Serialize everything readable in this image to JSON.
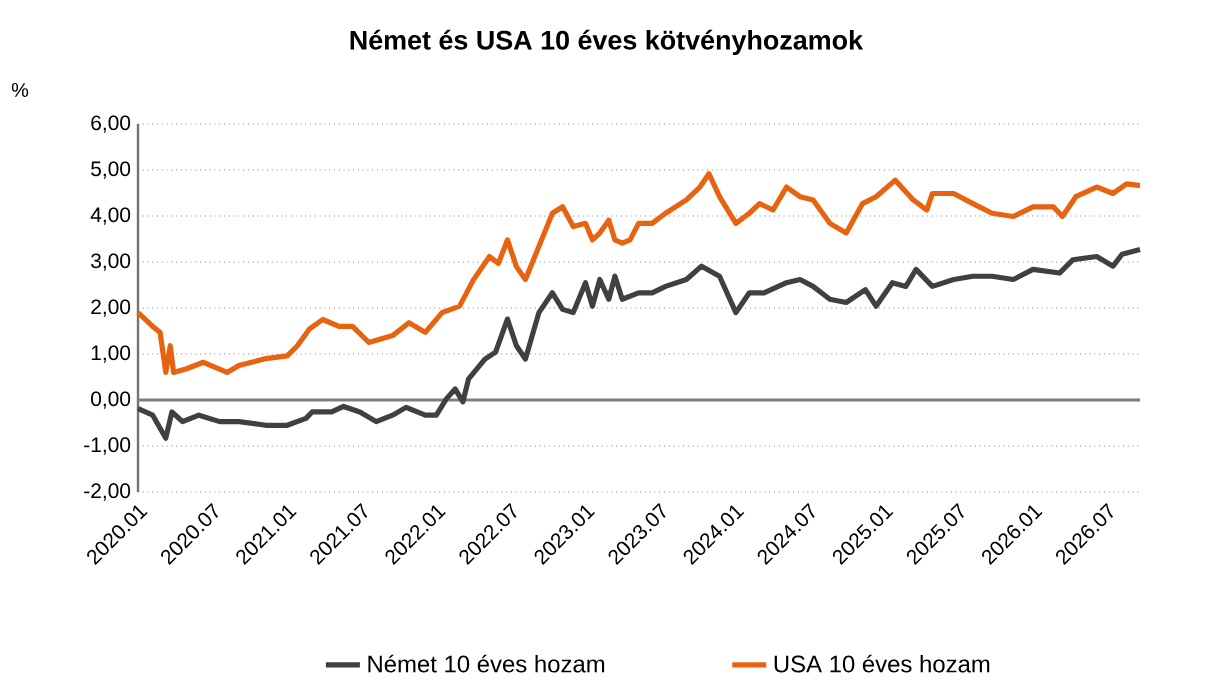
{
  "chart_data": {
    "type": "line",
    "title": "Német és USA 10 éves kötvényhozamok",
    "ylabel": "%",
    "xlim": [
      "2020-01-01",
      "2026-09-20"
    ],
    "ylim": [
      -2,
      6
    ],
    "xticks": [
      {
        "value": "2020-01",
        "label": "2020.01"
      },
      {
        "value": "2020-07",
        "label": "2020.07"
      },
      {
        "value": "2021-01",
        "label": "2021.01"
      },
      {
        "value": "2021-07",
        "label": "2021.07"
      },
      {
        "value": "2022-01",
        "label": "2022.01"
      },
      {
        "value": "2022-07",
        "label": "2022.07"
      },
      {
        "value": "2023-01",
        "label": "2023.01"
      },
      {
        "value": "2023-07",
        "label": "2023.07"
      },
      {
        "value": "2024-01",
        "label": "2024.01"
      },
      {
        "value": "2024-07",
        "label": "2024.07"
      },
      {
        "value": "2025-01",
        "label": "2025.01"
      },
      {
        "value": "2025-07",
        "label": "2025.07"
      },
      {
        "value": "2026-01",
        "label": "2026.01"
      },
      {
        "value": "2026-07",
        "label": "2026.07"
      }
    ],
    "yticks": [
      {
        "value": -2,
        "label": "-2,00"
      },
      {
        "value": -1,
        "label": "-1,00"
      },
      {
        "value": 0,
        "label": "0,00"
      },
      {
        "value": 1,
        "label": "1,00"
      },
      {
        "value": 2,
        "label": "2,00"
      },
      {
        "value": 3,
        "label": "3,00"
      },
      {
        "value": 4,
        "label": "4,00"
      },
      {
        "value": 5,
        "label": "5,00"
      },
      {
        "value": 6,
        "label": "6,00"
      }
    ],
    "grid": "y",
    "legend": "bottom",
    "ref_lines": [
      {
        "axis": "y",
        "value": 0,
        "color": "#7f7f7f"
      }
    ],
    "series": [
      {
        "name": "Német 10 éves hozam",
        "color": "#404040",
        "x": [
          "2020-01-01",
          "2020-02-06",
          "2020-03-10",
          "2020-03-25",
          "2020-04-20",
          "2020-05-30",
          "2020-07-20",
          "2020-09-05",
          "2020-11-10",
          "2021-01-01",
          "2021-02-16",
          "2021-03-03",
          "2021-04-20",
          "2021-05-19",
          "2021-06-28",
          "2021-08-07",
          "2021-09-16",
          "2021-10-19",
          "2021-12-05",
          "2022-01-01",
          "2022-01-26",
          "2022-02-16",
          "2022-03-07",
          "2022-03-21",
          "2022-04-30",
          "2022-05-26",
          "2022-06-24",
          "2022-07-16",
          "2022-08-07",
          "2022-09-09",
          "2022-10-12",
          "2022-11-06",
          "2022-12-02",
          "2023-01-01",
          "2023-01-18",
          "2023-02-05",
          "2023-02-27",
          "2023-03-14",
          "2023-04-01",
          "2023-05-11",
          "2023-06-13",
          "2023-07-16",
          "2023-09-05",
          "2023-10-12",
          "2023-11-25",
          "2024-01-04",
          "2024-02-06",
          "2024-03-14",
          "2024-05-08",
          "2024-06-10",
          "2024-07-12",
          "2024-08-22",
          "2024-10-01",
          "2024-11-17",
          "2024-12-13",
          "2025-01-22",
          "2025-02-24",
          "2025-03-21",
          "2025-04-30",
          "2025-06-21",
          "2025-08-07",
          "2025-09-23",
          "2025-11-14",
          "2026-01-01",
          "2026-03-07",
          "2026-04-09",
          "2026-06-06",
          "2026-07-16",
          "2026-08-07",
          "2026-09-20"
        ],
        "values": [
          -0.19,
          -0.33,
          -0.83,
          -0.26,
          -0.47,
          -0.33,
          -0.47,
          -0.47,
          -0.55,
          -0.55,
          -0.4,
          -0.26,
          -0.26,
          -0.14,
          -0.26,
          -0.47,
          -0.33,
          -0.16,
          -0.33,
          -0.33,
          0.03,
          0.24,
          -0.04,
          0.46,
          0.89,
          1.04,
          1.76,
          1.18,
          0.89,
          1.9,
          2.33,
          1.97,
          1.9,
          2.55,
          2.04,
          2.62,
          2.19,
          2.69,
          2.19,
          2.33,
          2.33,
          2.47,
          2.62,
          2.91,
          2.69,
          1.9,
          2.33,
          2.33,
          2.55,
          2.62,
          2.47,
          2.19,
          2.12,
          2.4,
          2.04,
          2.55,
          2.47,
          2.84,
          2.47,
          2.62,
          2.69,
          2.69,
          2.62,
          2.84,
          2.76,
          3.05,
          3.12,
          2.91,
          3.17,
          3.27
        ]
      },
      {
        "name": "USA 10 éves hozam",
        "color": "#e8630f",
        "x": [
          "2020-01-01",
          "2020-02-06",
          "2020-02-24",
          "2020-03-10",
          "2020-03-21",
          "2020-03-29",
          "2020-04-30",
          "2020-06-10",
          "2020-08-07",
          "2020-09-05",
          "2020-11-10",
          "2021-01-01",
          "2021-01-26",
          "2021-02-24",
          "2021-03-29",
          "2021-05-08",
          "2021-06-10",
          "2021-07-20",
          "2021-09-16",
          "2021-10-26",
          "2021-12-05",
          "2022-01-15",
          "2022-02-27",
          "2022-04-01",
          "2022-05-11",
          "2022-06-02",
          "2022-06-24",
          "2022-07-16",
          "2022-08-07",
          "2022-09-09",
          "2022-10-12",
          "2022-11-06",
          "2022-12-02",
          "2023-01-01",
          "2023-01-18",
          "2023-02-05",
          "2023-02-27",
          "2023-03-14",
          "2023-04-01",
          "2023-04-20",
          "2023-05-11",
          "2023-06-13",
          "2023-07-16",
          "2023-09-05",
          "2023-10-08",
          "2023-10-30",
          "2023-11-25",
          "2024-01-04",
          "2024-02-06",
          "2024-03-03",
          "2024-04-05",
          "2024-05-08",
          "2024-06-10",
          "2024-07-12",
          "2024-08-22",
          "2024-10-01",
          "2024-11-10",
          "2024-12-13",
          "2025-01-29",
          "2025-03-14",
          "2025-04-16",
          "2025-04-30",
          "2025-06-21",
          "2025-08-07",
          "2025-09-23",
          "2025-11-14",
          "2026-01-01",
          "2026-02-20",
          "2026-03-14",
          "2026-04-16",
          "2026-06-06",
          "2026-07-16",
          "2026-08-18",
          "2026-09-20"
        ],
        "values": [
          1.9,
          1.6,
          1.47,
          0.6,
          1.18,
          0.6,
          0.68,
          0.82,
          0.6,
          0.75,
          0.9,
          0.96,
          1.18,
          1.54,
          1.75,
          1.6,
          1.6,
          1.25,
          1.4,
          1.68,
          1.47,
          1.9,
          2.04,
          2.6,
          3.12,
          2.97,
          3.48,
          2.9,
          2.62,
          3.34,
          4.06,
          4.2,
          3.77,
          3.84,
          3.48,
          3.63,
          3.91,
          3.48,
          3.41,
          3.48,
          3.84,
          3.84,
          4.06,
          4.35,
          4.63,
          4.92,
          4.42,
          3.84,
          4.06,
          4.27,
          4.13,
          4.63,
          4.42,
          4.35,
          3.84,
          3.63,
          4.27,
          4.42,
          4.78,
          4.35,
          4.13,
          4.49,
          4.49,
          4.27,
          4.06,
          3.99,
          4.2,
          4.2,
          3.99,
          4.42,
          4.63,
          4.49,
          4.7,
          4.66
        ]
      }
    ]
  }
}
